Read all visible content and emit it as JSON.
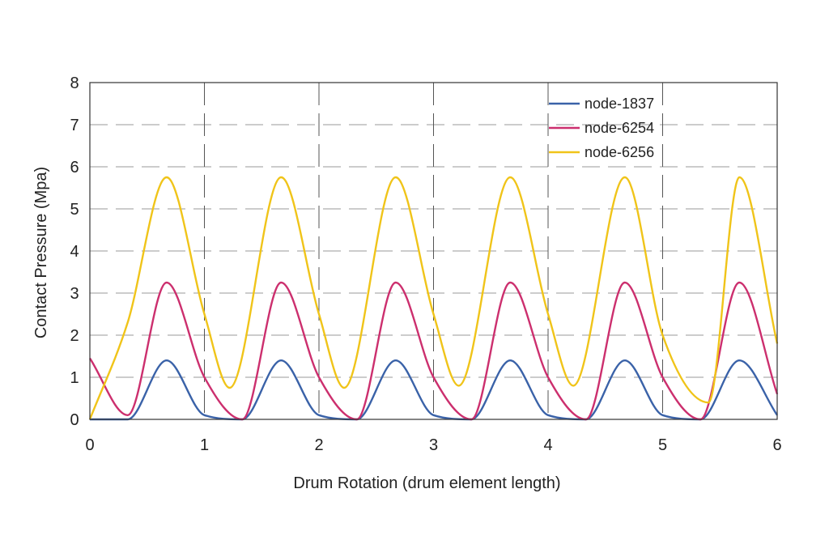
{
  "chart_data": {
    "type": "line",
    "title": "",
    "xlabel": "Drum Rotation (drum element length)",
    "ylabel": "Contact Pressure (Mpa)",
    "xlim": [
      0,
      6
    ],
    "ylim": [
      0,
      8
    ],
    "xticks": [
      "0",
      "1",
      "2",
      "3",
      "4",
      "5",
      "6"
    ],
    "yticks": [
      "0",
      "1",
      "2",
      "3",
      "4",
      "5",
      "6",
      "7",
      "8"
    ],
    "grid": true,
    "legend_position": "top-right",
    "series": [
      {
        "name": "node-1837",
        "color": "#3a62a8",
        "x": [
          0,
          0.33,
          0.67,
          1.0,
          1.33,
          1.67,
          2.0,
          2.33,
          2.67,
          3.0,
          3.33,
          3.67,
          4.0,
          4.33,
          4.67,
          5.0,
          5.33,
          5.67,
          6.0
        ],
        "y": [
          0,
          0,
          1.4,
          0.1,
          0,
          1.4,
          0.1,
          0,
          1.4,
          0.1,
          0,
          1.4,
          0.1,
          0,
          1.4,
          0.1,
          0,
          1.4,
          0.1
        ]
      },
      {
        "name": "node-6254",
        "color": "#cc2f6e",
        "x": [
          0,
          0.33,
          0.67,
          1.0,
          1.33,
          1.67,
          2.0,
          2.33,
          2.67,
          3.0,
          3.33,
          3.67,
          4.0,
          4.33,
          4.67,
          5.0,
          5.33,
          5.67,
          6.0
        ],
        "y": [
          1.45,
          0.1,
          3.25,
          1.0,
          0,
          3.25,
          1.0,
          0,
          3.25,
          1.0,
          0,
          3.25,
          1.0,
          0,
          3.25,
          1.0,
          0,
          3.25,
          0.6
        ]
      },
      {
        "name": "node-6256",
        "color": "#f0c419",
        "x": [
          0,
          0.33,
          0.67,
          1.0,
          1.22,
          1.67,
          2.0,
          2.22,
          2.67,
          3.0,
          3.22,
          3.67,
          4.0,
          4.22,
          4.67,
          5.0,
          5.4,
          5.67,
          6.0
        ],
        "y": [
          0,
          2.3,
          5.75,
          2.5,
          0.75,
          5.75,
          2.5,
          0.75,
          5.75,
          2.5,
          0.8,
          5.75,
          2.5,
          0.8,
          5.75,
          2.0,
          0.4,
          5.75,
          1.8
        ]
      }
    ]
  }
}
